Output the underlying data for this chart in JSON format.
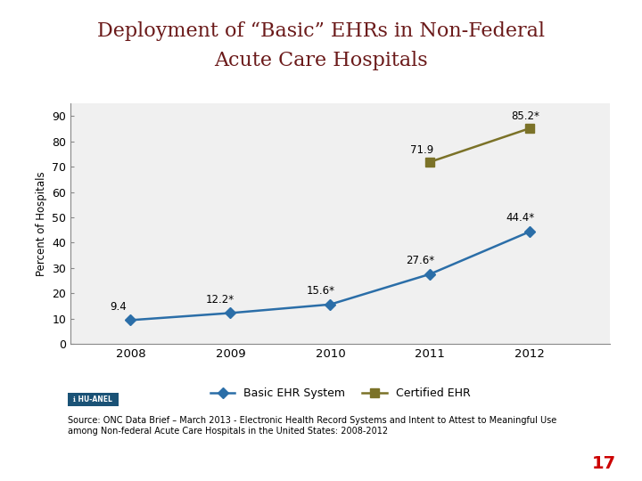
{
  "title_line1": "Deployment of “Basic” EHRs in Non-Federal",
  "title_line2": "Acute Care Hospitals",
  "title_color": "#6B1A1A",
  "years": [
    2008,
    2009,
    2010,
    2011,
    2012
  ],
  "basic_ehr": [
    9.4,
    12.2,
    15.6,
    27.6,
    44.4
  ],
  "basic_labels": [
    "9.4",
    "12.2*",
    "15.6*",
    "27.6*",
    "44.4*"
  ],
  "certified_ehr": [
    null,
    null,
    null,
    71.9,
    85.2
  ],
  "certified_labels": [
    "",
    "",
    "",
    "71.9",
    "85.2*"
  ],
  "basic_color": "#2B6EA8",
  "certified_color": "#7B7228",
  "ylabel": "Percent of Hospitals",
  "ylim": [
    0,
    95
  ],
  "yticks": [
    0,
    10,
    20,
    30,
    40,
    50,
    60,
    70,
    80,
    90
  ],
  "chart_bg": "#F0F0F0",
  "bg_color": "#FFFFFF",
  "source_text": "Source: ONC Data Brief – March 2013 - Electronic Health Record Systems and Intent to Attest to Meaningful Use\namong Non-federal Acute Care Hospitals in the United States: 2008-2012",
  "page_number": "17",
  "legend_basic": "Basic EHR System",
  "legend_certified": "Certified EHR"
}
